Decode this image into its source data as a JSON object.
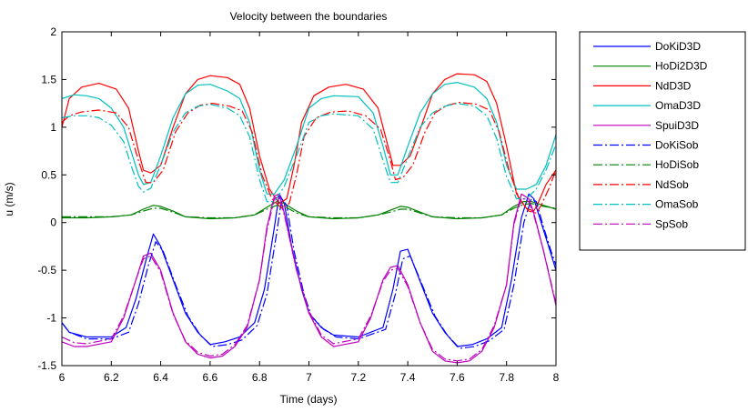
{
  "chart_data": {
    "type": "line",
    "title": "Velocity between the boundaries",
    "xlabel": "Time (days)",
    "ylabel": "u (m/s)",
    "xlim": [
      6,
      8
    ],
    "ylim": [
      -1.5,
      2
    ],
    "xticks": [
      "6",
      "6.2",
      "6.4",
      "6.6",
      "6.8",
      "7",
      "7.2",
      "7.4",
      "7.6",
      "7.8",
      "8"
    ],
    "yticks": [
      "-1.5",
      "-1",
      "-0.5",
      "0",
      "0.5",
      "1",
      "1.5",
      "2"
    ],
    "grid": false,
    "legend_position": "outside-right",
    "series": [
      {
        "name": "DoKiD3D",
        "color": "#0000ff",
        "dash": "solid",
        "x": [
          6.0,
          6.03,
          6.1,
          6.2,
          6.26,
          6.3,
          6.34,
          6.37,
          6.4,
          6.45,
          6.5,
          6.55,
          6.6,
          6.66,
          6.72,
          6.78,
          6.82,
          6.86,
          6.88,
          6.9,
          6.93,
          6.97,
          7.0,
          7.05,
          7.1,
          7.2,
          7.3,
          7.34,
          7.37,
          7.4,
          7.44,
          7.5,
          7.55,
          7.6,
          7.66,
          7.72,
          7.78,
          7.82,
          7.86,
          7.89,
          7.91,
          7.94,
          7.97,
          8.0
        ],
        "y": [
          -1.05,
          -1.15,
          -1.2,
          -1.2,
          -1.1,
          -0.8,
          -0.4,
          -0.12,
          -0.25,
          -0.6,
          -0.95,
          -1.15,
          -1.28,
          -1.25,
          -1.2,
          -1.05,
          -0.7,
          -0.05,
          0.3,
          0.2,
          -0.25,
          -0.7,
          -0.95,
          -1.1,
          -1.18,
          -1.2,
          -1.1,
          -0.7,
          -0.3,
          -0.28,
          -0.55,
          -0.95,
          -1.15,
          -1.3,
          -1.28,
          -1.22,
          -1.1,
          -0.6,
          0.05,
          0.3,
          0.25,
          0.0,
          -0.25,
          -0.5
        ]
      },
      {
        "name": "HoDi2D3D",
        "color": "#008000",
        "dash": "solid",
        "x": [
          6.0,
          6.1,
          6.2,
          6.28,
          6.33,
          6.37,
          6.4,
          6.45,
          6.5,
          6.6,
          6.7,
          6.78,
          6.83,
          6.87,
          6.9,
          6.95,
          7.0,
          7.1,
          7.2,
          7.28,
          7.33,
          7.37,
          7.4,
          7.45,
          7.5,
          7.6,
          7.7,
          7.78,
          7.83,
          7.87,
          7.9,
          7.95,
          8.0
        ],
        "y": [
          0.05,
          0.05,
          0.06,
          0.08,
          0.14,
          0.18,
          0.17,
          0.12,
          0.06,
          0.04,
          0.05,
          0.08,
          0.16,
          0.22,
          0.2,
          0.12,
          0.06,
          0.04,
          0.05,
          0.08,
          0.13,
          0.17,
          0.16,
          0.11,
          0.06,
          0.04,
          0.05,
          0.08,
          0.17,
          0.22,
          0.22,
          0.18,
          0.14
        ]
      },
      {
        "name": "NdD3D",
        "color": "#ff0000",
        "dash": "solid",
        "x": [
          6.0,
          6.03,
          6.08,
          6.15,
          6.22,
          6.27,
          6.31,
          6.33,
          6.36,
          6.4,
          6.45,
          6.5,
          6.55,
          6.6,
          6.67,
          6.72,
          6.76,
          6.8,
          6.84,
          6.88,
          6.91,
          6.94,
          6.97,
          7.02,
          7.08,
          7.15,
          7.22,
          7.28,
          7.32,
          7.34,
          7.37,
          7.41,
          7.46,
          7.5,
          7.55,
          7.6,
          7.67,
          7.72,
          7.76,
          7.8,
          7.84,
          7.88,
          7.91,
          7.93,
          7.96,
          8.0
        ],
        "y": [
          1.0,
          1.3,
          1.42,
          1.46,
          1.4,
          1.2,
          0.75,
          0.55,
          0.52,
          0.6,
          1.0,
          1.35,
          1.5,
          1.54,
          1.52,
          1.45,
          1.2,
          0.7,
          0.35,
          0.2,
          0.25,
          0.6,
          1.05,
          1.33,
          1.42,
          1.45,
          1.4,
          1.2,
          0.8,
          0.6,
          0.6,
          0.7,
          1.05,
          1.35,
          1.5,
          1.56,
          1.55,
          1.48,
          1.25,
          0.8,
          0.3,
          0.15,
          0.12,
          0.22,
          0.4,
          0.55
        ]
      },
      {
        "name": "OmaD3D",
        "color": "#00bfbf",
        "dash": "solid",
        "x": [
          6.0,
          6.05,
          6.1,
          6.15,
          6.2,
          6.25,
          6.28,
          6.31,
          6.33,
          6.36,
          6.4,
          6.45,
          6.5,
          6.55,
          6.6,
          6.67,
          6.72,
          6.76,
          6.8,
          6.83,
          6.86,
          6.9,
          6.95,
          7.0,
          7.05,
          7.1,
          7.2,
          7.26,
          7.3,
          7.33,
          7.36,
          7.4,
          7.45,
          7.5,
          7.55,
          7.6,
          7.67,
          7.72,
          7.76,
          7.8,
          7.84,
          7.88,
          7.92,
          7.96,
          8.0
        ],
        "y": [
          1.3,
          1.34,
          1.33,
          1.3,
          1.2,
          1.0,
          0.75,
          0.5,
          0.4,
          0.42,
          0.7,
          1.1,
          1.35,
          1.44,
          1.45,
          1.38,
          1.3,
          1.05,
          0.55,
          0.3,
          0.3,
          0.45,
          0.8,
          1.2,
          1.3,
          1.33,
          1.32,
          1.15,
          0.8,
          0.5,
          0.5,
          0.8,
          1.15,
          1.35,
          1.45,
          1.47,
          1.42,
          1.3,
          1.05,
          0.6,
          0.35,
          0.35,
          0.4,
          0.6,
          0.92
        ]
      },
      {
        "name": "SpuiD3D",
        "color": "#bf00bf",
        "dash": "solid",
        "x": [
          6.0,
          6.05,
          6.1,
          6.2,
          6.25,
          6.3,
          6.33,
          6.36,
          6.4,
          6.45,
          6.5,
          6.55,
          6.6,
          6.65,
          6.7,
          6.75,
          6.8,
          6.83,
          6.86,
          6.88,
          6.9,
          6.95,
          7.0,
          7.05,
          7.1,
          7.2,
          7.25,
          7.3,
          7.33,
          7.36,
          7.4,
          7.45,
          7.5,
          7.55,
          7.6,
          7.65,
          7.7,
          7.75,
          7.8,
          7.83,
          7.86,
          7.89,
          7.91,
          7.95,
          8.0
        ],
        "y": [
          -1.25,
          -1.3,
          -1.3,
          -1.25,
          -1.0,
          -0.6,
          -0.35,
          -0.32,
          -0.5,
          -0.95,
          -1.25,
          -1.38,
          -1.42,
          -1.4,
          -1.3,
          -1.1,
          -0.6,
          -0.05,
          0.28,
          0.3,
          0.1,
          -0.5,
          -0.95,
          -1.2,
          -1.3,
          -1.25,
          -1.0,
          -0.6,
          -0.47,
          -0.45,
          -0.65,
          -1.05,
          -1.35,
          -1.45,
          -1.47,
          -1.45,
          -1.35,
          -1.1,
          -0.65,
          0.0,
          0.3,
          0.25,
          0.1,
          -0.3,
          -0.87
        ]
      },
      {
        "name": "DoKiSob",
        "color": "#0000ff",
        "dash": "dashdot",
        "x": [
          6.0,
          6.03,
          6.1,
          6.2,
          6.27,
          6.31,
          6.35,
          6.38,
          6.41,
          6.46,
          6.51,
          6.56,
          6.61,
          6.67,
          6.73,
          6.79,
          6.83,
          6.87,
          6.89,
          6.91,
          6.94,
          6.98,
          7.01,
          7.06,
          7.11,
          7.2,
          7.31,
          7.35,
          7.38,
          7.41,
          7.45,
          7.51,
          7.56,
          7.61,
          7.67,
          7.73,
          7.79,
          7.83,
          7.87,
          7.9,
          7.92,
          7.95,
          7.98,
          8.0
        ],
        "y": [
          -1.05,
          -1.15,
          -1.22,
          -1.22,
          -1.15,
          -0.85,
          -0.45,
          -0.2,
          -0.3,
          -0.65,
          -0.98,
          -1.18,
          -1.3,
          -1.28,
          -1.23,
          -1.08,
          -0.75,
          -0.1,
          0.25,
          0.18,
          -0.3,
          -0.75,
          -0.98,
          -1.12,
          -1.2,
          -1.22,
          -1.12,
          -0.75,
          -0.38,
          -0.35,
          -0.6,
          -0.98,
          -1.18,
          -1.32,
          -1.3,
          -1.24,
          -1.12,
          -0.65,
          0.0,
          0.25,
          0.22,
          -0.05,
          -0.3,
          -0.45
        ]
      },
      {
        "name": "HoDiSob",
        "color": "#008000",
        "dash": "dashdot",
        "x": [
          6.0,
          6.1,
          6.2,
          6.28,
          6.33,
          6.37,
          6.4,
          6.45,
          6.5,
          6.6,
          6.7,
          6.78,
          6.83,
          6.87,
          6.9,
          6.95,
          7.0,
          7.1,
          7.2,
          7.28,
          7.33,
          7.37,
          7.4,
          7.45,
          7.5,
          7.6,
          7.7,
          7.78,
          7.83,
          7.87,
          7.9,
          7.95,
          8.0
        ],
        "y": [
          0.06,
          0.06,
          0.06,
          0.08,
          0.12,
          0.15,
          0.15,
          0.11,
          0.06,
          0.05,
          0.05,
          0.08,
          0.14,
          0.18,
          0.17,
          0.1,
          0.06,
          0.05,
          0.05,
          0.08,
          0.11,
          0.14,
          0.14,
          0.1,
          0.06,
          0.05,
          0.05,
          0.08,
          0.15,
          0.19,
          0.2,
          0.17,
          0.15
        ]
      },
      {
        "name": "NdSob",
        "color": "#ff0000",
        "dash": "dashdot",
        "x": [
          6.0,
          6.03,
          6.08,
          6.15,
          6.22,
          6.27,
          6.31,
          6.34,
          6.37,
          6.41,
          6.46,
          6.51,
          6.56,
          6.61,
          6.68,
          6.73,
          6.77,
          6.81,
          6.85,
          6.89,
          6.92,
          6.95,
          6.98,
          7.03,
          7.09,
          7.16,
          7.23,
          7.29,
          7.33,
          7.35,
          7.38,
          7.42,
          7.47,
          7.51,
          7.56,
          7.61,
          7.68,
          7.73,
          7.77,
          7.81,
          7.85,
          7.89,
          7.92,
          7.94,
          7.97,
          8.0
        ],
        "y": [
          1.05,
          1.12,
          1.16,
          1.18,
          1.15,
          1.0,
          0.65,
          0.42,
          0.42,
          0.55,
          0.95,
          1.15,
          1.23,
          1.25,
          1.22,
          1.17,
          0.95,
          0.5,
          0.25,
          0.15,
          0.2,
          0.5,
          0.9,
          1.1,
          1.16,
          1.17,
          1.12,
          0.98,
          0.65,
          0.45,
          0.47,
          0.6,
          0.95,
          1.15,
          1.23,
          1.26,
          1.24,
          1.18,
          0.95,
          0.55,
          0.25,
          0.12,
          0.1,
          0.18,
          0.35,
          0.55
        ]
      },
      {
        "name": "OmaSob",
        "color": "#00bfbf",
        "dash": "dashdot",
        "x": [
          6.0,
          6.05,
          6.1,
          6.15,
          6.2,
          6.25,
          6.28,
          6.31,
          6.33,
          6.36,
          6.4,
          6.45,
          6.5,
          6.55,
          6.6,
          6.67,
          6.72,
          6.76,
          6.8,
          6.83,
          6.86,
          6.9,
          6.95,
          7.0,
          7.05,
          7.1,
          7.2,
          7.26,
          7.3,
          7.33,
          7.36,
          7.4,
          7.45,
          7.5,
          7.55,
          7.6,
          7.67,
          7.72,
          7.76,
          7.8,
          7.84,
          7.88,
          7.92,
          7.96,
          8.0
        ],
        "y": [
          1.1,
          1.12,
          1.12,
          1.1,
          1.02,
          0.85,
          0.6,
          0.38,
          0.32,
          0.36,
          0.6,
          0.95,
          1.15,
          1.22,
          1.24,
          1.2,
          1.12,
          0.9,
          0.45,
          0.22,
          0.22,
          0.38,
          0.7,
          1.05,
          1.12,
          1.14,
          1.12,
          0.98,
          0.65,
          0.42,
          0.42,
          0.68,
          1.0,
          1.15,
          1.22,
          1.25,
          1.22,
          1.12,
          0.88,
          0.48,
          0.25,
          0.25,
          0.35,
          0.55,
          0.82
        ]
      },
      {
        "name": "SpSob",
        "color": "#bf00bf",
        "dash": "dashdot",
        "x": [
          6.0,
          6.05,
          6.1,
          6.2,
          6.25,
          6.3,
          6.33,
          6.36,
          6.4,
          6.45,
          6.5,
          6.55,
          6.6,
          6.65,
          6.7,
          6.75,
          6.8,
          6.83,
          6.86,
          6.88,
          6.9,
          6.95,
          7.0,
          7.05,
          7.1,
          7.2,
          7.25,
          7.3,
          7.33,
          7.36,
          7.4,
          7.45,
          7.5,
          7.55,
          7.6,
          7.65,
          7.7,
          7.75,
          7.8,
          7.83,
          7.86,
          7.89,
          7.91,
          7.95,
          8.0
        ],
        "y": [
          -1.2,
          -1.26,
          -1.27,
          -1.22,
          -0.98,
          -0.6,
          -0.38,
          -0.35,
          -0.52,
          -0.96,
          -1.24,
          -1.36,
          -1.4,
          -1.38,
          -1.28,
          -1.08,
          -0.6,
          -0.08,
          0.25,
          0.27,
          0.08,
          -0.5,
          -0.93,
          -1.18,
          -1.27,
          -1.22,
          -0.98,
          -0.62,
          -0.5,
          -0.48,
          -0.67,
          -1.05,
          -1.33,
          -1.43,
          -1.45,
          -1.43,
          -1.33,
          -1.08,
          -0.65,
          -0.02,
          0.26,
          0.22,
          0.08,
          -0.3,
          -0.85
        ]
      }
    ]
  }
}
